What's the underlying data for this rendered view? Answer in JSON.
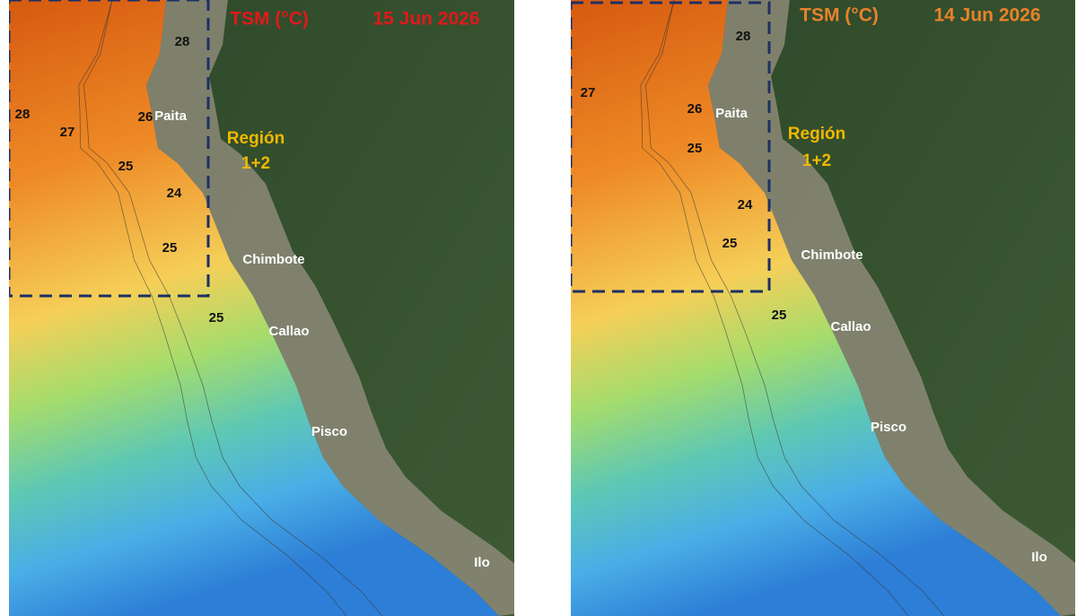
{
  "panels": [
    {
      "title": "TSM (°C)",
      "date": "15 Jun 2026",
      "region": [
        "Región",
        "1+2"
      ],
      "cities": [
        "Paita",
        "Chimbote",
        "Callao",
        "Pisco",
        "Ilo"
      ],
      "contour_labels": [
        28,
        28,
        26,
        27,
        25,
        24,
        25,
        25
      ]
    },
    {
      "title": "TSM (°C)",
      "date": "14 Jun 2026",
      "region": [
        "Región",
        "1+2"
      ],
      "cities": [
        "Paita",
        "Chimbote",
        "Callao",
        "Pisco",
        "Ilo"
      ],
      "contour_labels": [
        28,
        27,
        26,
        25,
        24,
        25,
        25
      ]
    }
  ]
}
